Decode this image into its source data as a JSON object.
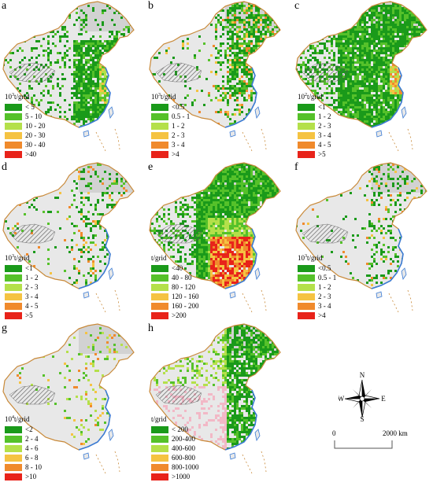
{
  "colors": {
    "land": "#e8e8e8",
    "region_shade": "#d2d2d2",
    "border": "#c98a3a",
    "coast": "#3a7bd5",
    "hatch": "#555555",
    "grid": "#ffffff"
  },
  "panels": [
    {
      "id": "a",
      "letter": "a",
      "unit_base": "10",
      "unit_exp": "3",
      "unit_suffix": "t/grid",
      "classes": [
        {
          "label": "< 5",
          "color": "#1a9a1a"
        },
        {
          "label": "5 - 10",
          "color": "#55c12a"
        },
        {
          "label": "10 - 20",
          "color": "#b4e04a"
        },
        {
          "label": "20 - 30",
          "color": "#f5c342"
        },
        {
          "label": "30 - 40",
          "color": "#f08a2c"
        },
        {
          "label": ">40",
          "color": "#e8231a"
        }
      ],
      "pattern": "east-dense"
    },
    {
      "id": "b",
      "letter": "b",
      "unit_base": "10",
      "unit_exp": "3",
      "unit_suffix": "t/grid",
      "classes": [
        {
          "label": "<0.5",
          "color": "#1a9a1a"
        },
        {
          "label": "0.5 - 1",
          "color": "#55c12a"
        },
        {
          "label": "1 - 2",
          "color": "#b4e04a"
        },
        {
          "label": "2 - 3",
          "color": "#f5c342"
        },
        {
          "label": "3 - 4",
          "color": "#f08a2c"
        },
        {
          "label": ">4",
          "color": "#e8231a"
        }
      ],
      "pattern": "north-east"
    },
    {
      "id": "c",
      "letter": "c",
      "unit_base": "10",
      "unit_exp": "2",
      "unit_suffix": "t/grid",
      "classes": [
        {
          "label": "<1",
          "color": "#1a9a1a"
        },
        {
          "label": "1 - 2",
          "color": "#55c12a"
        },
        {
          "label": "2 - 3",
          "color": "#b4e04a"
        },
        {
          "label": "3 - 4",
          "color": "#f5c342"
        },
        {
          "label": "4 - 5",
          "color": "#f08a2c"
        },
        {
          "label": ">5",
          "color": "#e8231a"
        }
      ],
      "pattern": "wide"
    },
    {
      "id": "d",
      "letter": "d",
      "unit_base": "10",
      "unit_exp": "3",
      "unit_suffix": "t/grid",
      "classes": [
        {
          "label": "<1",
          "color": "#1a9a1a"
        },
        {
          "label": "1 - 2",
          "color": "#55c12a"
        },
        {
          "label": "2 - 3",
          "color": "#b4e04a"
        },
        {
          "label": "3 - 4",
          "color": "#f5c342"
        },
        {
          "label": "4 - 5",
          "color": "#f08a2c"
        },
        {
          "label": ">5",
          "color": "#e8231a"
        }
      ],
      "pattern": "sparse"
    },
    {
      "id": "e",
      "letter": "e",
      "unit_base": "",
      "unit_exp": "",
      "unit_suffix": "t/grid",
      "classes": [
        {
          "label": "<40",
          "color": "#1a9a1a"
        },
        {
          "label": "40 - 80",
          "color": "#55c12a"
        },
        {
          "label": "80 - 120",
          "color": "#b4e04a"
        },
        {
          "label": "120 - 160",
          "color": "#f5c342"
        },
        {
          "label": "160 - 200",
          "color": "#f08a2c"
        },
        {
          "label": ">200",
          "color": "#e8231a"
        }
      ],
      "pattern": "south-hot"
    },
    {
      "id": "f",
      "letter": "f",
      "unit_base": "10",
      "unit_exp": "3",
      "unit_suffix": "t/grid",
      "classes": [
        {
          "label": "<0.5",
          "color": "#1a9a1a"
        },
        {
          "label": "0.5 - 1",
          "color": "#55c12a"
        },
        {
          "label": "1 - 2",
          "color": "#b4e04a"
        },
        {
          "label": "2 - 3",
          "color": "#f5c342"
        },
        {
          "label": "3 - 4",
          "color": "#f08a2c"
        },
        {
          "label": ">4",
          "color": "#e8231a"
        }
      ],
      "pattern": "sparse"
    },
    {
      "id": "g",
      "letter": "g",
      "unit_base": "10",
      "unit_exp": "4",
      "unit_suffix": "t/grid",
      "classes": [
        {
          "label": "<2",
          "color": "#1a9a1a"
        },
        {
          "label": "2 - 4",
          "color": "#55c12a"
        },
        {
          "label": "4 - 6",
          "color": "#b4e04a"
        },
        {
          "label": "6 - 8",
          "color": "#f5c342"
        },
        {
          "label": "8 - 10",
          "color": "#f08a2c"
        },
        {
          "label": ">10",
          "color": "#e8231a"
        }
      ],
      "pattern": "dots"
    },
    {
      "id": "h",
      "letter": "h",
      "unit_base": "",
      "unit_exp": "",
      "unit_suffix": "t/grid",
      "classes": [
        {
          "label": "< 200",
          "color": "#1a9a1a"
        },
        {
          "label": "200-400",
          "color": "#55c12a"
        },
        {
          "label": "400-600",
          "color": "#b4e04a"
        },
        {
          "label": "600-800",
          "color": "#f5c342"
        },
        {
          "label": "800-1000",
          "color": "#f08a2c"
        },
        {
          "label": ">1000",
          "color": "#e8231a"
        }
      ],
      "pattern": "northeast-pink"
    }
  ],
  "compass": {
    "n": "N",
    "s": "S",
    "e": "E",
    "w": "W"
  },
  "scale": {
    "start": "0",
    "end": "2000 km"
  }
}
